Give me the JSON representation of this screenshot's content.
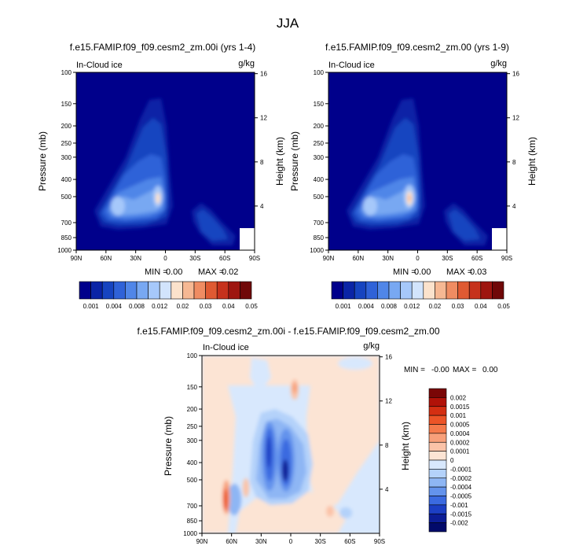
{
  "figure_title": "JJA",
  "chart_data": [
    {
      "type": "contour",
      "title": "f.e15.FAMIP.f09_f09.cesm2_zm.00i (yrs 1-4)",
      "field_label": "In-Cloud ice",
      "units": "g/kg",
      "ylabel_left": "Pressure (mb)",
      "ylabel_right": "Height (km)",
      "x_ticks": [
        "90N",
        "60N",
        "30N",
        "0",
        "30S",
        "60S",
        "90S"
      ],
      "pressure_ticks": [
        "100",
        "150",
        "200",
        "250",
        "300",
        "400",
        "500",
        "700",
        "850",
        "1000"
      ],
      "height_ticks": [
        "16",
        "12",
        "8",
        "4"
      ],
      "stats": {
        "min_label": "MIN =",
        "min": "0.00",
        "max_label": "MAX =",
        "max": "0.02"
      },
      "colorbar_levels": [
        "0.001",
        "0.004",
        "0.008",
        "0.012",
        "0.02",
        "0.03",
        "0.04",
        "0.05"
      ]
    },
    {
      "type": "contour",
      "title": "f.e15.FAMIP.f09_f09.cesm2_zm.00 (yrs 1-9)",
      "field_label": "In-Cloud ice",
      "units": "g/kg",
      "ylabel_left": "Pressure (mb)",
      "ylabel_right": "Height (km)",
      "x_ticks": [
        "90N",
        "60N",
        "30N",
        "0",
        "30S",
        "60S",
        "90S"
      ],
      "pressure_ticks": [
        "100",
        "150",
        "200",
        "250",
        "300",
        "400",
        "500",
        "700",
        "850",
        "1000"
      ],
      "height_ticks": [
        "16",
        "12",
        "8",
        "4"
      ],
      "stats": {
        "min_label": "MIN =",
        "min": "0.00",
        "max_label": "MAX =",
        "max": "0.03"
      },
      "colorbar_levels": [
        "0.001",
        "0.004",
        "0.008",
        "0.012",
        "0.02",
        "0.03",
        "0.04",
        "0.05"
      ]
    },
    {
      "type": "contour",
      "title": "f.e15.FAMIP.f09_f09.cesm2_zm.00i - f.e15.FAMIP.f09_f09.cesm2_zm.00",
      "field_label": "In-Cloud ice",
      "units": "g/kg",
      "ylabel_left": "Pressure (mb)",
      "ylabel_right": "Height (km)",
      "x_ticks": [
        "90N",
        "60N",
        "30N",
        "0",
        "30S",
        "60S",
        "90S"
      ],
      "pressure_ticks": [
        "100",
        "150",
        "200",
        "250",
        "300",
        "400",
        "500",
        "700",
        "850",
        "1000"
      ],
      "height_ticks": [
        "16",
        "12",
        "8",
        "4"
      ],
      "stats": {
        "min_label": "MIN =",
        "min": "-0.00",
        "max_label": "MAX =",
        "max": "0.00"
      },
      "colorbar_levels": [
        "0.002",
        "0.0015",
        "0.001",
        "0.0005",
        "0.0004",
        "0.0002",
        "0.0001",
        "0",
        "-0.0001",
        "-0.0002",
        "-0.0004",
        "-0.0005",
        "-0.001",
        "-0.0015",
        "-0.002"
      ]
    }
  ],
  "colors": {
    "seq": [
      "#00008b",
      "#0a24a6",
      "#1644c0",
      "#2f62d8",
      "#5086e8",
      "#78a8f2",
      "#a6c8fa",
      "#d2e4fc",
      "#fbe2cc",
      "#f6b893",
      "#ef8c62",
      "#df5a32",
      "#c6321c",
      "#9e1610",
      "#700808"
    ],
    "div": [
      "#7a0606",
      "#b11208",
      "#d42f12",
      "#ec5427",
      "#f57a4b",
      "#f8a07a",
      "#fbc3a8",
      "#fce4d4",
      "#d8e8fd",
      "#b4d2fa",
      "#8eb6f4",
      "#6493ec",
      "#3b6ae0",
      "#1c3fc4",
      "#0c1d96",
      "#020a6a"
    ]
  }
}
